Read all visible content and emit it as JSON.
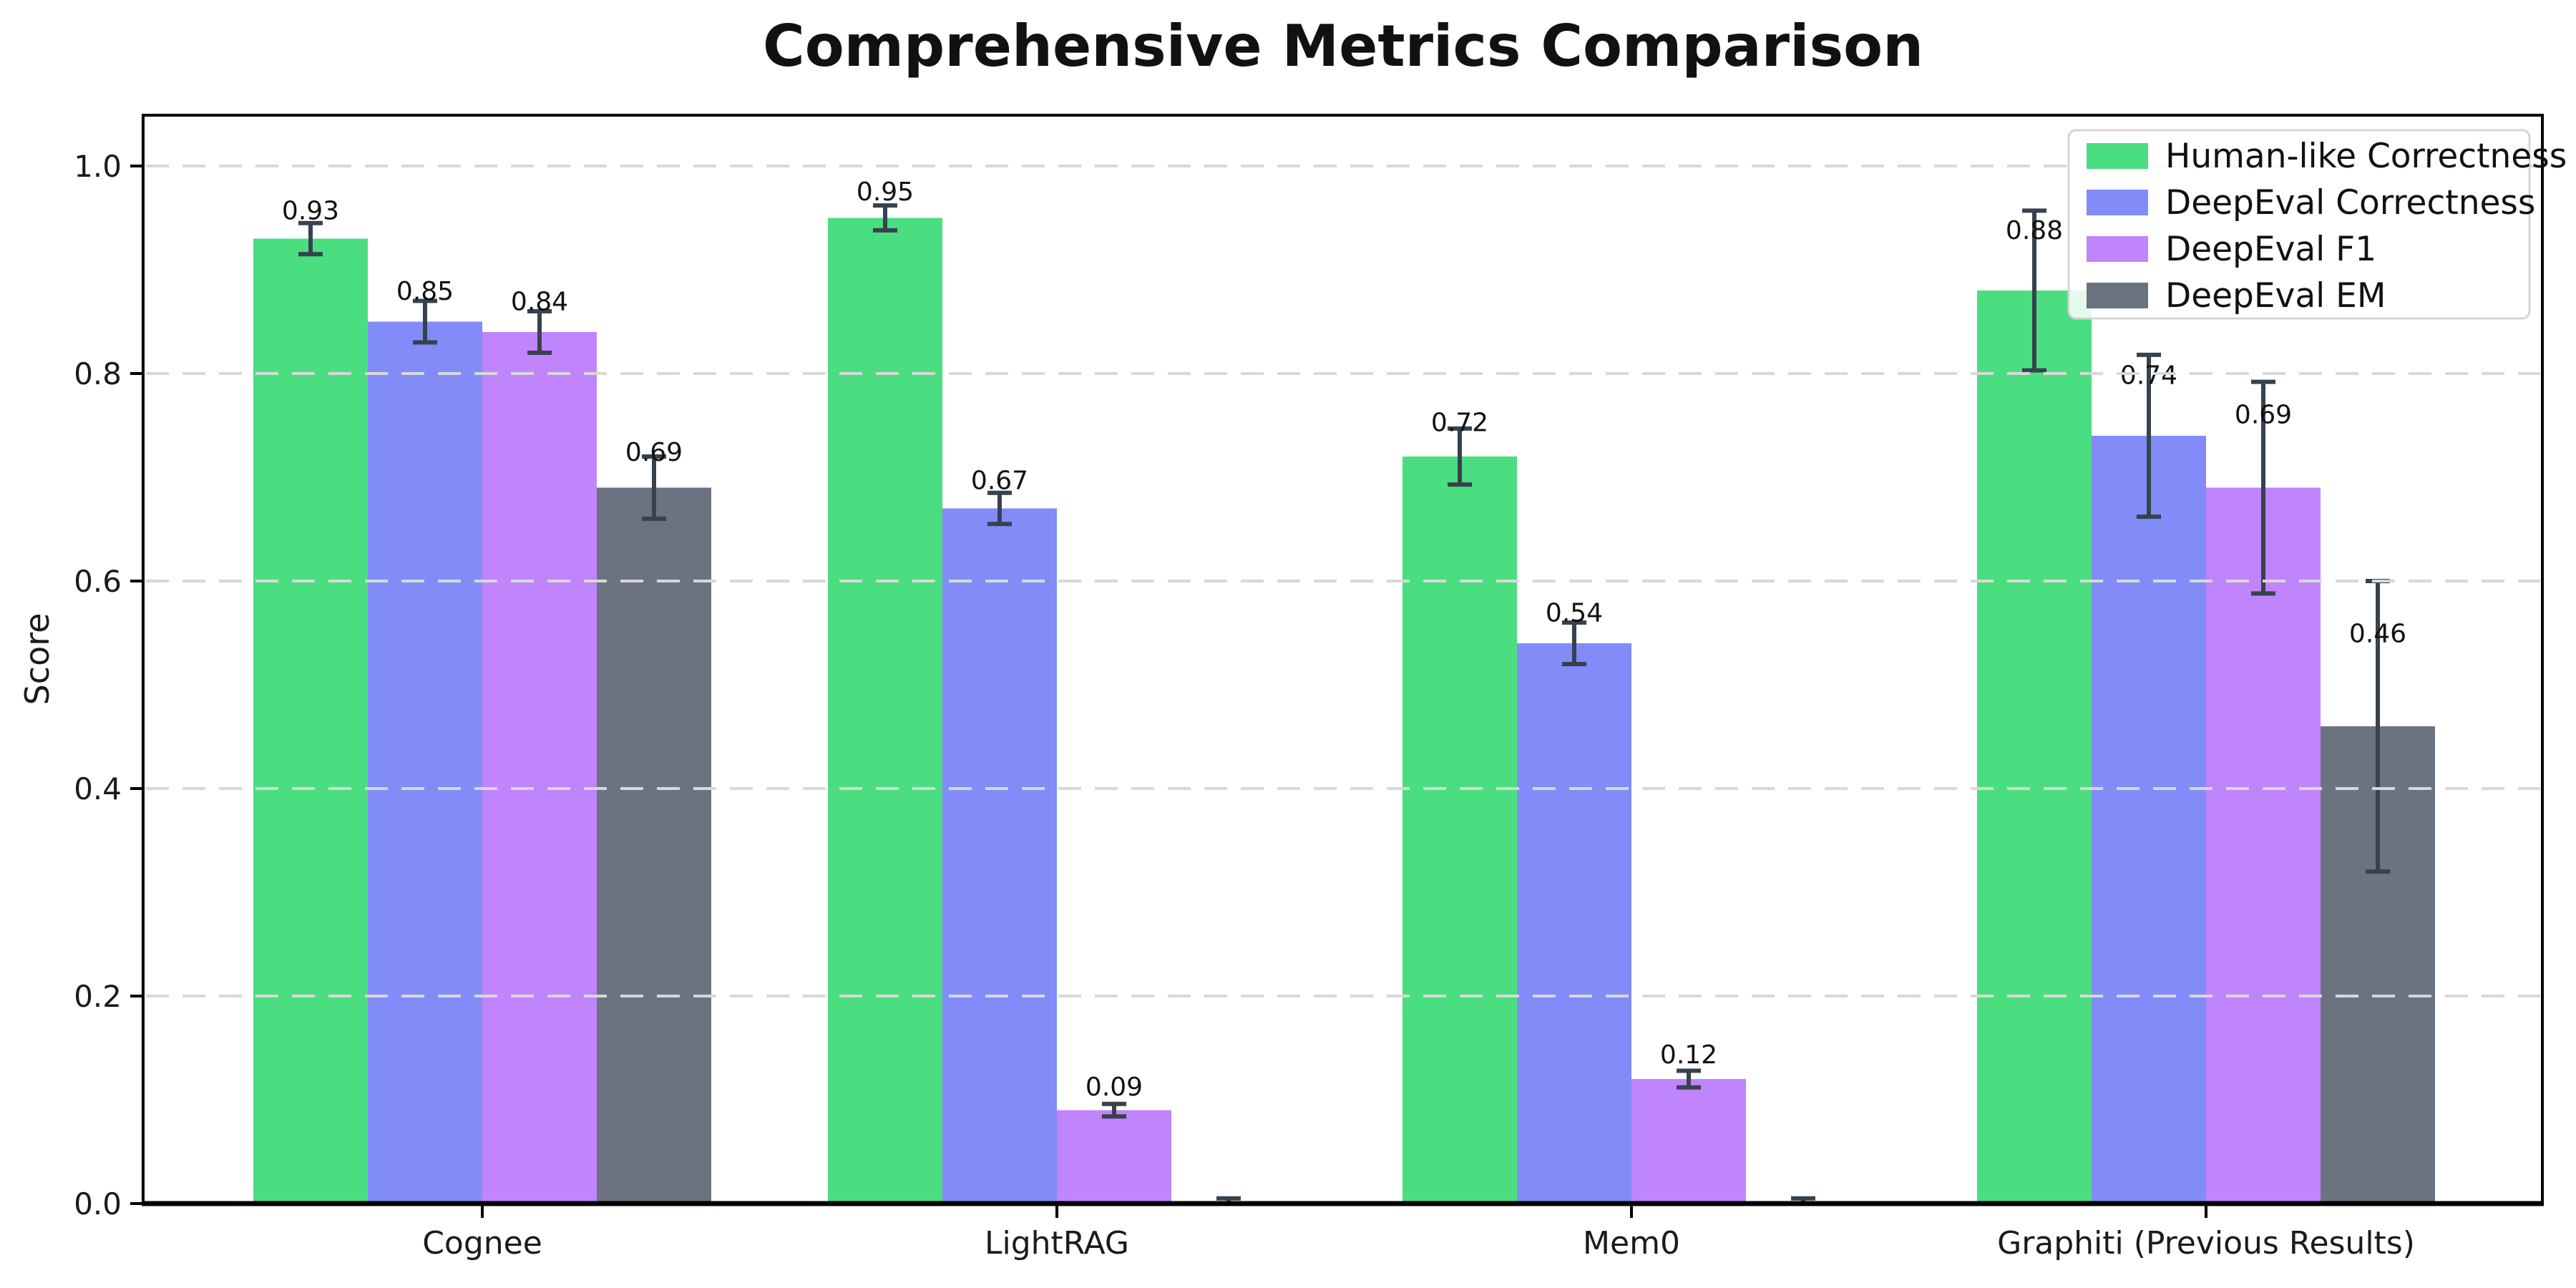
{
  "chart_data": {
    "type": "bar",
    "title": "Comprehensive Metrics Comparison",
    "xlabel": "",
    "ylabel": "Score",
    "categories": [
      "Cognee",
      "LightRAG",
      "Mem0",
      "Graphiti (Previous Results)"
    ],
    "series": [
      {
        "name": "Human-like Correctness",
        "color": "#4ade80",
        "values": [
          0.93,
          0.95,
          0.72,
          0.88
        ],
        "errors": [
          0.015,
          0.012,
          0.027,
          0.077
        ],
        "labels": [
          "0.93",
          "0.95",
          "0.72",
          "0.88"
        ]
      },
      {
        "name": "DeepEval Correctness",
        "color": "#818cf8",
        "values": [
          0.85,
          0.67,
          0.54,
          0.74
        ],
        "errors": [
          0.02,
          0.015,
          0.02,
          0.078
        ],
        "labels": [
          "0.85",
          "0.67",
          "0.54",
          "0.74"
        ]
      },
      {
        "name": "DeepEval F1",
        "color": "#c084fc",
        "values": [
          0.84,
          0.09,
          0.12,
          0.69
        ],
        "errors": [
          0.02,
          0.006,
          0.008,
          0.102
        ],
        "labels": [
          "0.84",
          "0.09",
          "0.12",
          "0.69"
        ]
      },
      {
        "name": "DeepEval EM",
        "color": "#6b7280",
        "values": [
          0.69,
          0.0,
          0.0,
          0.46
        ],
        "errors": [
          0.03,
          0.005,
          0.005,
          0.14
        ],
        "labels": [
          "0.69",
          "",
          "",
          "0.46"
        ]
      }
    ],
    "yticks": [
      "0.0",
      "0.2",
      "0.4",
      "0.6",
      "0.8",
      "1.0"
    ],
    "ytick_values": [
      0.0,
      0.2,
      0.4,
      0.6,
      0.8,
      1.0
    ],
    "ylim": [
      0,
      1.05
    ],
    "grid": "horizontal-dashed",
    "grid_color": "#d8d8d8",
    "legend_position": "upper-right",
    "error_bar_color": "#37424f",
    "spine_color": "#000000",
    "text_color": "#1a1a1a",
    "background_color": "#ffffff"
  }
}
